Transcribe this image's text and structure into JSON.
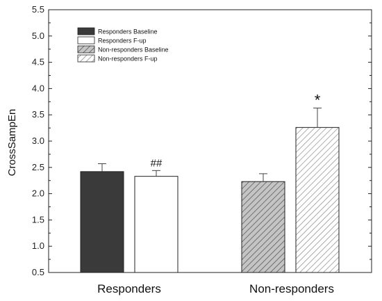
{
  "chart_data": {
    "type": "bar",
    "ylabel": "CrossSampEn",
    "ylim": [
      0.5,
      5.5
    ],
    "yticks": [
      "0.5",
      "1.0",
      "1.5",
      "2.0",
      "2.5",
      "3.0",
      "3.5",
      "4.0",
      "4.5",
      "5.0",
      "5.5"
    ],
    "groups": [
      "Responders",
      "Non-responders"
    ],
    "legend_position": "top-left",
    "series": [
      {
        "name": "Responders Baseline",
        "group": 0,
        "value": 2.42,
        "error": 0.15,
        "fill": "#3a3a3a",
        "pattern": "solid"
      },
      {
        "name": "Responders F-up",
        "group": 0,
        "value": 2.33,
        "error": 0.11,
        "fill": "#ffffff",
        "pattern": "solid",
        "annotation": "##"
      },
      {
        "name": "Non-responders Baseline",
        "group": 1,
        "value": 2.23,
        "error": 0.15,
        "fill": "#c8c8c8",
        "pattern": "hatch"
      },
      {
        "name": "Non-responders F-up",
        "group": 1,
        "value": 3.26,
        "error": 0.37,
        "fill": "#ffffff",
        "pattern": "hatch",
        "annotation": "*"
      }
    ]
  }
}
